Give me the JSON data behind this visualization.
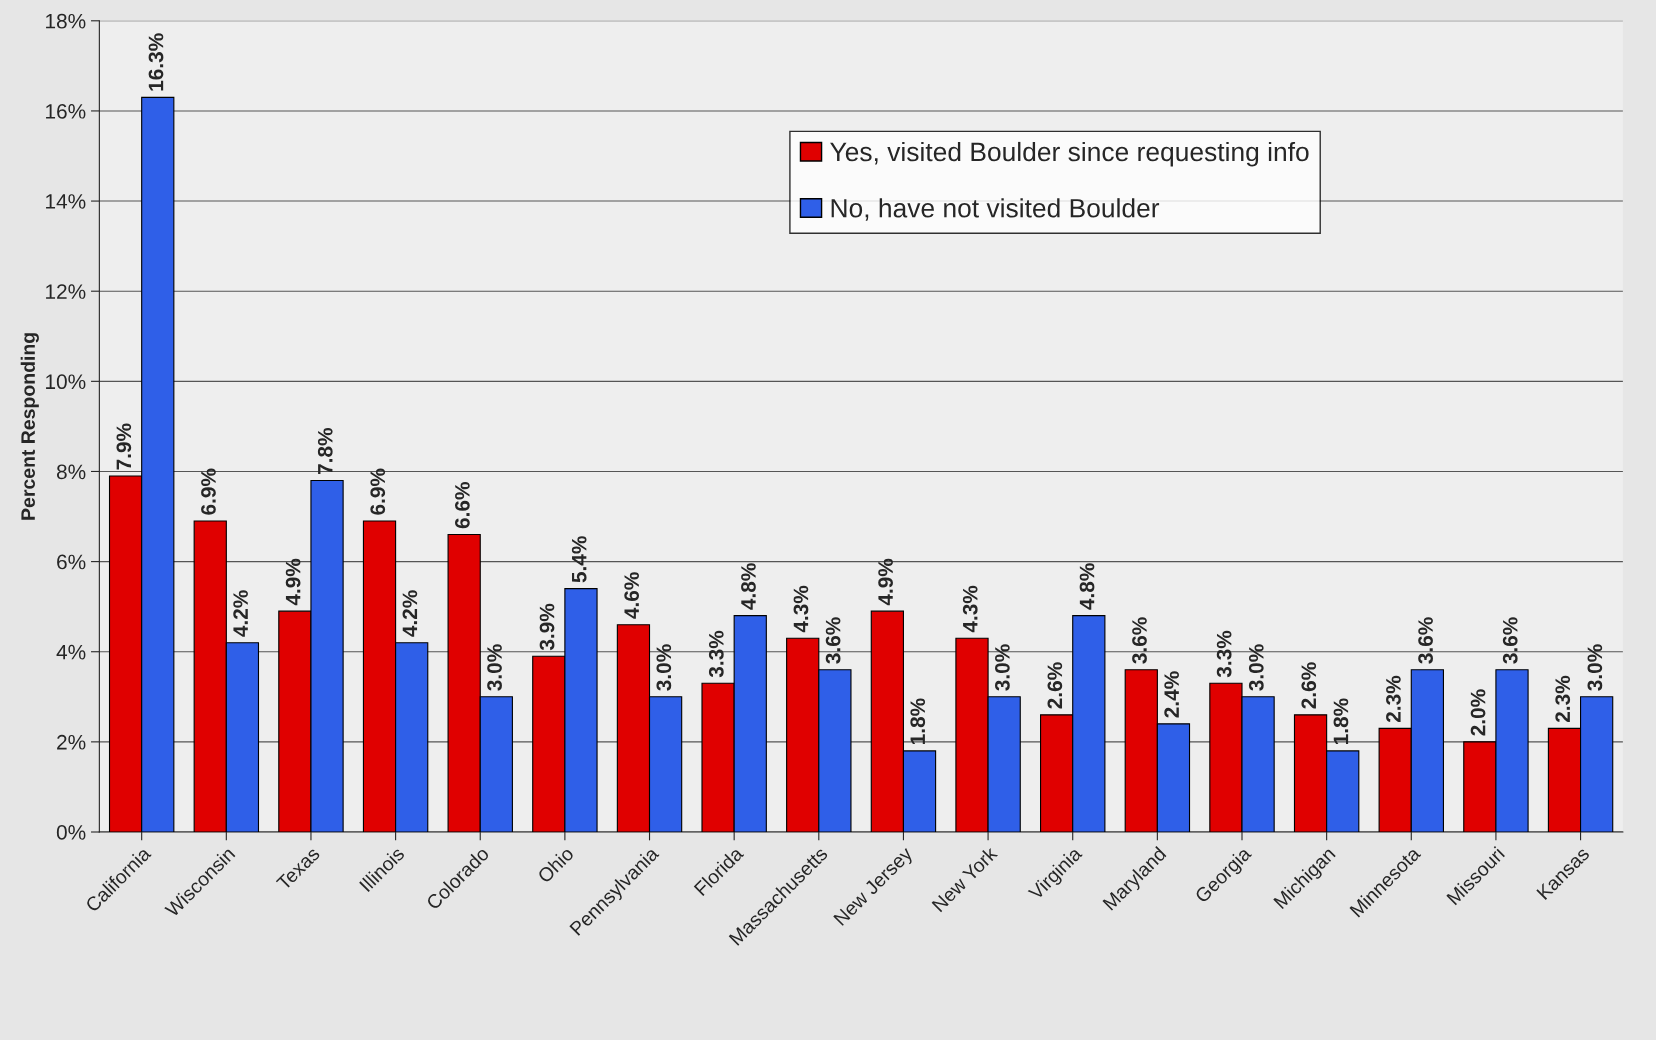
{
  "chart_data": {
    "type": "bar",
    "ylabel": "Percent Responding",
    "categories": [
      "California",
      "Wisconsin",
      "Texas",
      "Illinois",
      "Colorado",
      "Ohio",
      "Pennsylvania",
      "Florida",
      "Massachusetts",
      "New Jersey",
      "New York",
      "Virginia",
      "Maryland",
      "Georgia",
      "Michigan",
      "Minnesota",
      "Missouri",
      "Kansas"
    ],
    "series": [
      {
        "name": "Yes, visited Boulder since requesting info",
        "color": "#e00000",
        "values": [
          7.9,
          6.9,
          4.9,
          6.9,
          6.6,
          3.9,
          4.6,
          3.3,
          4.3,
          4.9,
          4.3,
          2.6,
          3.6,
          3.3,
          2.6,
          2.3,
          2.0,
          2.3
        ],
        "value_labels": [
          "7.9%",
          "6.9%",
          "4.9%",
          "6.9%",
          "6.6%",
          "3.9%",
          "4.6%",
          "3.3%",
          "4.3%",
          "4.9%",
          "4.3%",
          "2.6%",
          "3.6%",
          "3.3%",
          "2.6%",
          "2.3%",
          "2.0%",
          "2.3%"
        ]
      },
      {
        "name": "No, have not visited Boulder",
        "color": "#2f5fe8",
        "values": [
          16.3,
          4.2,
          7.8,
          4.2,
          3.0,
          5.4,
          3.0,
          4.8,
          3.6,
          1.8,
          3.0,
          4.8,
          2.4,
          3.0,
          1.8,
          3.6,
          3.6,
          3.0
        ],
        "value_labels": [
          "16.3%",
          "4.2%",
          "7.8%",
          "4.2%",
          "3.0%",
          "5.4%",
          "3.0%",
          "4.8%",
          "3.6%",
          "1.8%",
          "3.0%",
          "4.8%",
          "2.4%",
          "3.0%",
          "1.8%",
          "3.6%",
          "3.6%",
          "3.0%"
        ]
      }
    ],
    "ylim": [
      0,
      18
    ],
    "yticks": [
      {
        "value": 0,
        "label": "0%"
      },
      {
        "value": 2,
        "label": "2%"
      },
      {
        "value": 4,
        "label": "4%"
      },
      {
        "value": 6,
        "label": "6%"
      },
      {
        "value": 8,
        "label": "8%"
      },
      {
        "value": 10,
        "label": "10%"
      },
      {
        "value": 12,
        "label": "12%"
      },
      {
        "value": 14,
        "label": "14%"
      },
      {
        "value": 16,
        "label": "16%"
      },
      {
        "value": 18,
        "label": "18%"
      }
    ],
    "grid": "y",
    "legend": "top right"
  }
}
